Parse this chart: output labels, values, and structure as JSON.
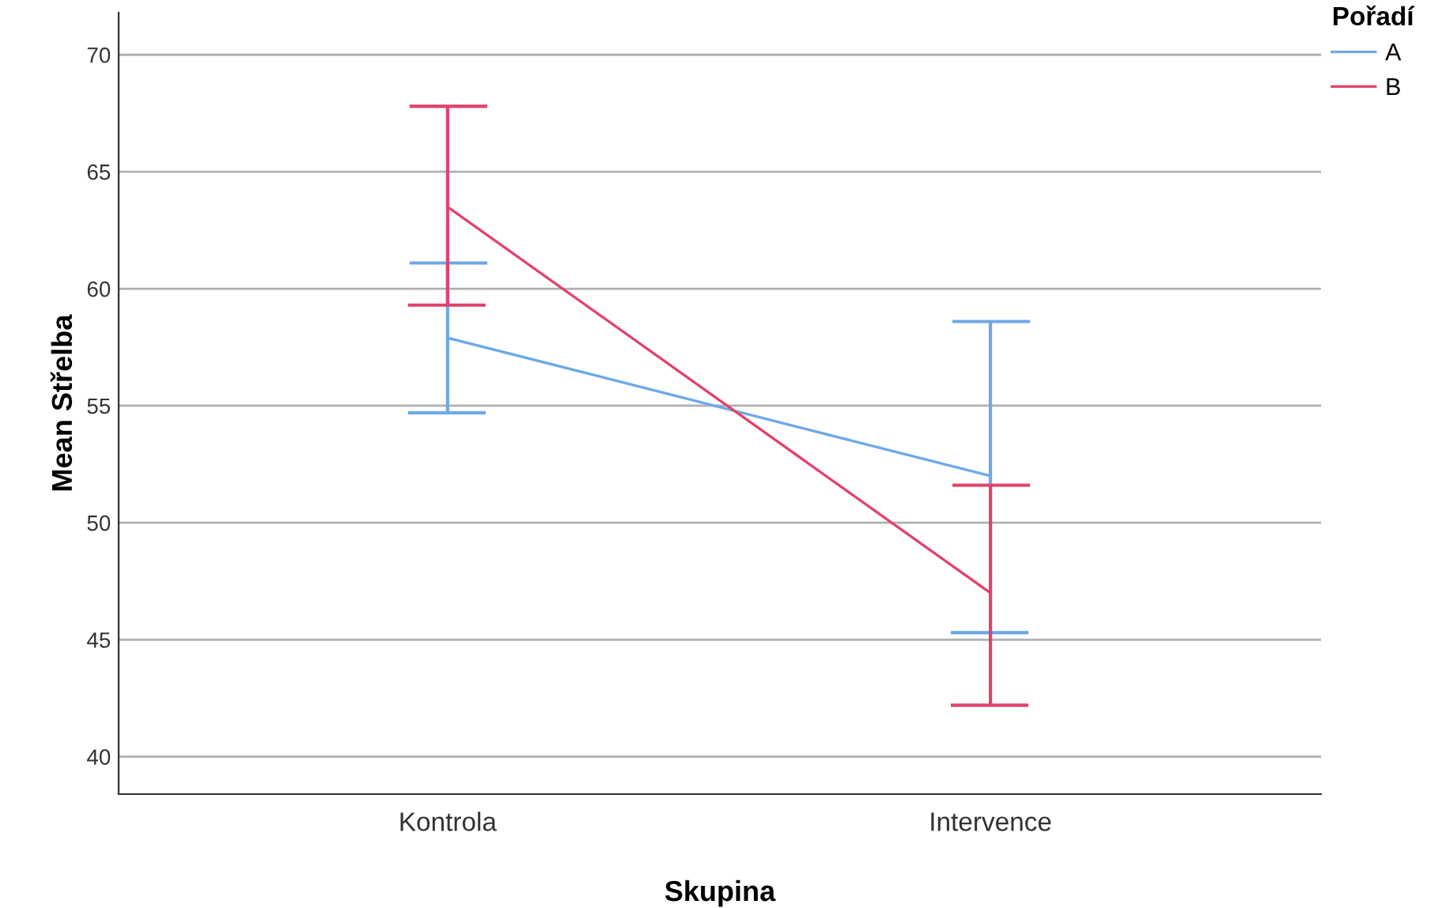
{
  "chart_data": {
    "type": "line",
    "xlabel": "Skupina",
    "ylabel": "Mean Střelba",
    "legend_title": "Pořadí",
    "categories": [
      "Kontrola",
      "Intervence"
    ],
    "series": [
      {
        "name": "A",
        "color": "#6fa8e8",
        "values": [
          57.9,
          52.0
        ],
        "errors": [
          [
            54.7,
            61.1
          ],
          [
            45.3,
            58.6
          ]
        ]
      },
      {
        "name": "B",
        "color": "#e0426b",
        "values": [
          63.5,
          47.0
        ],
        "errors": [
          [
            59.3,
            67.8
          ],
          [
            42.2,
            51.6
          ]
        ]
      }
    ],
    "ylim": [
      38.4,
      71.8
    ],
    "yticks": [
      40,
      45,
      50,
      55,
      60,
      65,
      70
    ],
    "grid": "y",
    "legend": "top right",
    "marker": "none",
    "line_style": "solid"
  }
}
